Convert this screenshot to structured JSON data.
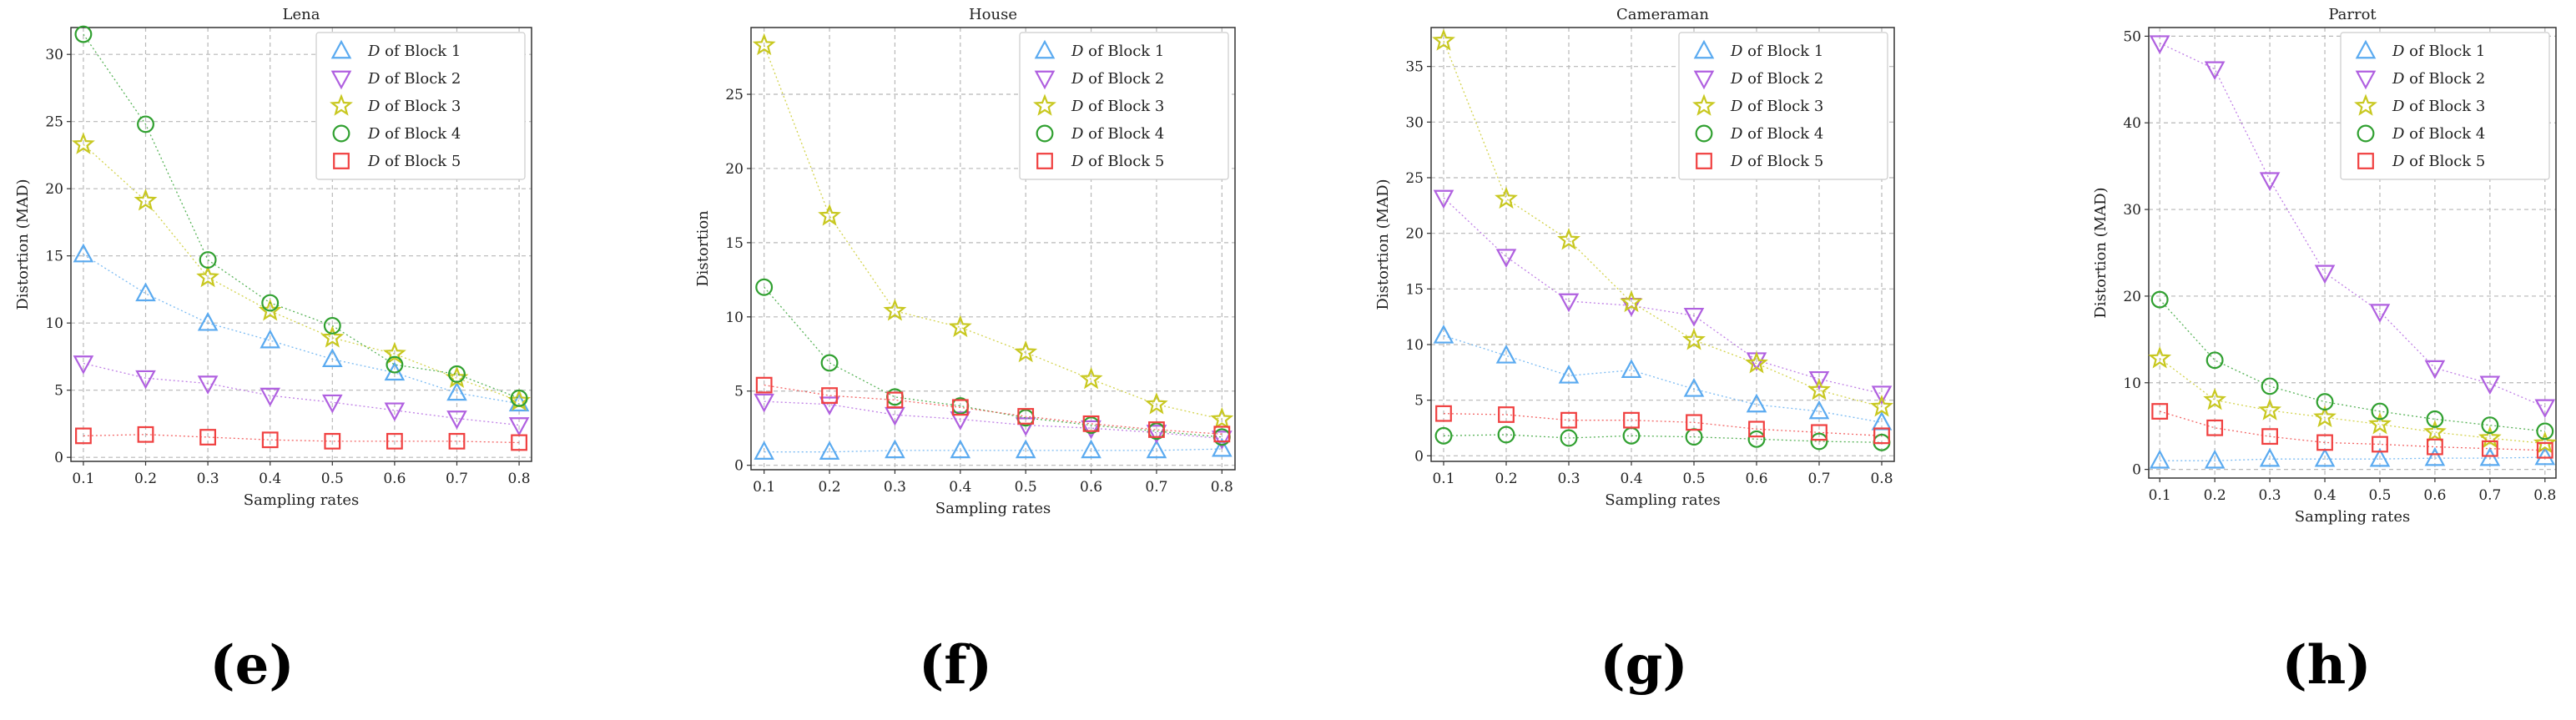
{
  "figure": {
    "panel_labels": [
      "(e)",
      "(f)",
      "(g)",
      "(h)"
    ],
    "marker_colors": [
      "#5aaaf0",
      "#b060e0",
      "#c8c820",
      "#30a030",
      "#f04040"
    ],
    "series_styles": [
      "triangle",
      "down-triangle",
      "star",
      "circle",
      "square"
    ]
  },
  "chart_data": [
    {
      "type": "line",
      "title": "Lena",
      "xlabel": "Sampling rates",
      "ylabel": "Distortion (MAD)",
      "x": [
        0.1,
        0.2,
        0.3,
        0.4,
        0.5,
        0.6,
        0.7,
        0.8
      ],
      "x_ticks": [
        "0.1",
        "0.2",
        "0.3",
        "0.4",
        "0.5",
        "0.6",
        "0.7",
        "0.8"
      ],
      "xlim": [
        0.08,
        0.82
      ],
      "ylim": [
        -0.3,
        32
      ],
      "y_ticks": [
        0,
        5,
        10,
        15,
        20,
        25,
        30
      ],
      "grid": true,
      "legend_position": "top-right",
      "series": [
        {
          "legend_prefix": "D",
          "legend_suffix": " of Block 1",
          "values": [
            15.1,
            12.2,
            10.0,
            8.7,
            7.3,
            6.3,
            4.8,
            4.0
          ]
        },
        {
          "legend_prefix": "D",
          "legend_suffix": " of Block 2",
          "values": [
            7.0,
            5.9,
            5.5,
            4.6,
            4.1,
            3.5,
            2.9,
            2.4
          ]
        },
        {
          "legend_prefix": "D",
          "legend_suffix": " of Block 3",
          "values": [
            23.3,
            19.1,
            13.4,
            10.9,
            8.9,
            7.7,
            5.9,
            4.2
          ]
        },
        {
          "legend_prefix": "D",
          "legend_suffix": " of Block 4",
          "values": [
            31.5,
            24.8,
            14.7,
            11.5,
            9.8,
            6.9,
            6.2,
            4.4
          ]
        },
        {
          "legend_prefix": "D",
          "legend_suffix": " of Block 5",
          "values": [
            1.6,
            1.7,
            1.5,
            1.3,
            1.2,
            1.2,
            1.2,
            1.1
          ]
        }
      ]
    },
    {
      "type": "line",
      "title": "House",
      "xlabel": "Sampling rates",
      "ylabel": "Distortion",
      "x": [
        0.1,
        0.2,
        0.3,
        0.4,
        0.5,
        0.6,
        0.7,
        0.8
      ],
      "x_ticks": [
        "0.1",
        "0.2",
        "0.3",
        "0.4",
        "0.5",
        "0.6",
        "0.7",
        "0.8"
      ],
      "xlim": [
        0.08,
        0.82
      ],
      "ylim": [
        -0.3,
        29.5
      ],
      "y_ticks": [
        0,
        5,
        10,
        15,
        20,
        25
      ],
      "grid": true,
      "legend_position": "top-right",
      "series": [
        {
          "legend_prefix": "D",
          "legend_suffix": " of Block 1",
          "values": [
            0.9,
            0.9,
            1.0,
            1.0,
            1.0,
            1.0,
            1.0,
            1.1
          ]
        },
        {
          "legend_prefix": "D",
          "legend_suffix": " of Block 2",
          "values": [
            4.3,
            4.1,
            3.4,
            3.1,
            2.7,
            2.5,
            2.2,
            1.8
          ]
        },
        {
          "legend_prefix": "D",
          "legend_suffix": " of Block 3",
          "values": [
            28.3,
            16.8,
            10.4,
            9.3,
            7.6,
            5.8,
            4.1,
            3.1
          ]
        },
        {
          "legend_prefix": "D",
          "legend_suffix": " of Block 4",
          "values": [
            12.0,
            6.9,
            4.6,
            4.0,
            3.2,
            2.7,
            2.3,
            1.9
          ]
        },
        {
          "legend_prefix": "D",
          "legend_suffix": " of Block 5",
          "values": [
            5.4,
            4.7,
            4.4,
            3.9,
            3.3,
            2.8,
            2.4,
            2.1
          ]
        }
      ]
    },
    {
      "type": "line",
      "title": "Cameraman",
      "xlabel": "Sampling rates",
      "ylabel": "Distortion (MAD)",
      "x": [
        0.1,
        0.2,
        0.3,
        0.4,
        0.5,
        0.6,
        0.7,
        0.8
      ],
      "x_ticks": [
        "0.1",
        "0.2",
        "0.3",
        "0.4",
        "0.5",
        "0.6",
        "0.7",
        "0.8"
      ],
      "xlim": [
        0.08,
        0.82
      ],
      "ylim": [
        -0.5,
        38.5
      ],
      "y_ticks": [
        0,
        5,
        10,
        15,
        20,
        25,
        30,
        35
      ],
      "grid": true,
      "legend_position": "top-right",
      "series": [
        {
          "legend_prefix": "D",
          "legend_suffix": " of Block 1",
          "values": [
            10.8,
            9.0,
            7.2,
            7.7,
            6.0,
            4.6,
            4.0,
            3.0
          ]
        },
        {
          "legend_prefix": "D",
          "legend_suffix": " of Block 2",
          "values": [
            23.2,
            17.9,
            13.9,
            13.5,
            12.6,
            8.6,
            6.9,
            5.6
          ]
        },
        {
          "legend_prefix": "D",
          "legend_suffix": " of Block 3",
          "values": [
            37.3,
            23.1,
            19.4,
            13.8,
            10.4,
            8.3,
            5.9,
            4.4
          ]
        },
        {
          "legend_prefix": "D",
          "legend_suffix": " of Block 4",
          "values": [
            1.8,
            1.9,
            1.6,
            1.8,
            1.7,
            1.5,
            1.3,
            1.2
          ]
        },
        {
          "legend_prefix": "D",
          "legend_suffix": " of Block 5",
          "values": [
            3.8,
            3.7,
            3.2,
            3.2,
            3.0,
            2.4,
            2.1,
            1.8
          ]
        }
      ]
    },
    {
      "type": "line",
      "title": "Parrot",
      "xlabel": "Sampling rates",
      "ylabel": "Distortion (MAD)",
      "x": [
        0.1,
        0.2,
        0.3,
        0.4,
        0.5,
        0.6,
        0.7,
        0.8
      ],
      "x_ticks": [
        "0.1",
        "0.2",
        "0.3",
        "0.4",
        "0.5",
        "0.6",
        "0.7",
        "0.8"
      ],
      "xlim": [
        0.08,
        0.82
      ],
      "ylim": [
        -1.0,
        51
      ],
      "y_ticks": [
        0,
        10,
        20,
        30,
        40,
        50
      ],
      "grid": true,
      "legend_position": "top-right",
      "series": [
        {
          "legend_prefix": "D",
          "legend_suffix": " of Block 1",
          "values": [
            1.0,
            1.0,
            1.2,
            1.2,
            1.2,
            1.3,
            1.3,
            1.4
          ]
        },
        {
          "legend_prefix": "D",
          "legend_suffix": " of Block 2",
          "values": [
            49.2,
            46.2,
            33.4,
            22.7,
            18.2,
            11.7,
            9.9,
            7.2
          ]
        },
        {
          "legend_prefix": "D",
          "legend_suffix": " of Block 3",
          "values": [
            12.8,
            8.0,
            6.8,
            6.0,
            5.2,
            4.3,
            3.6,
            3.0
          ]
        },
        {
          "legend_prefix": "D",
          "legend_suffix": " of Block 4",
          "values": [
            19.6,
            12.6,
            9.6,
            7.8,
            6.7,
            5.8,
            5.1,
            4.4
          ]
        },
        {
          "legend_prefix": "D",
          "legend_suffix": " of Block 5",
          "values": [
            6.7,
            4.8,
            3.8,
            3.1,
            2.9,
            2.6,
            2.4,
            2.2
          ]
        }
      ]
    }
  ]
}
